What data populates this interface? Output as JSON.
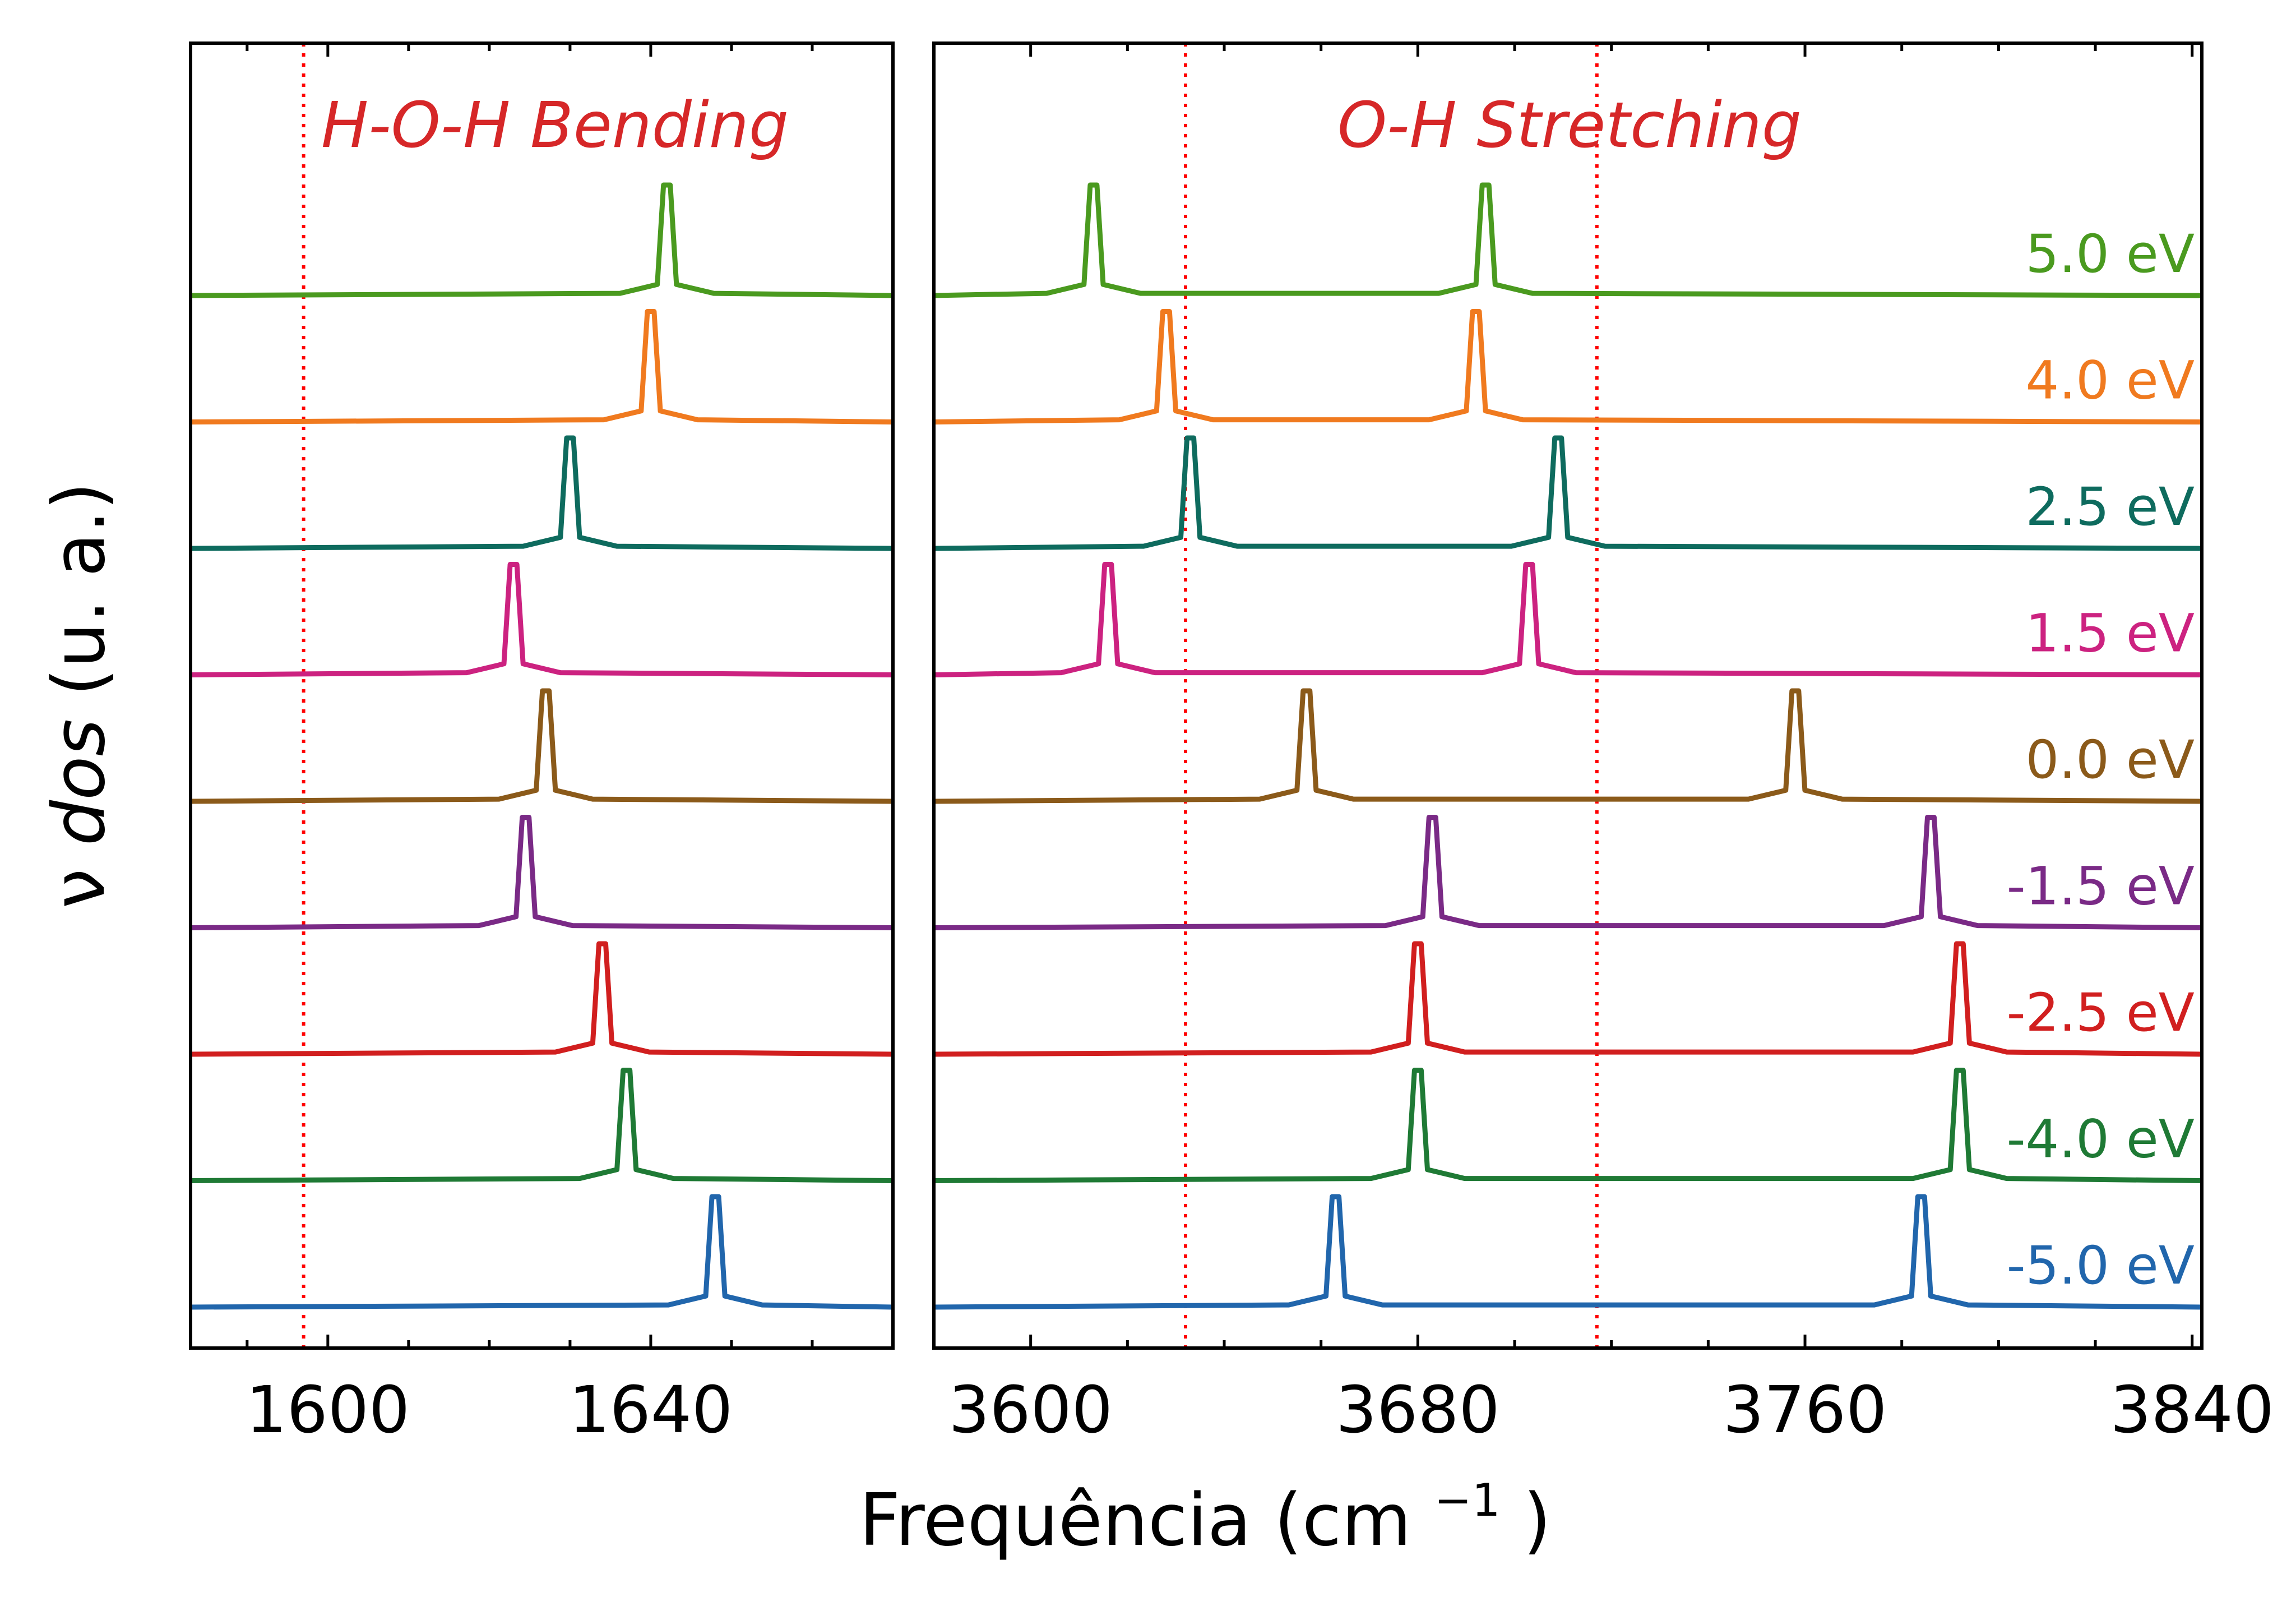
{
  "chart_data": [
    {
      "type": "line",
      "panel": "left",
      "title": "H-O-H Bending",
      "xlim": [
        1583,
        1670
      ],
      "xticks_major": [
        1600,
        1640
      ],
      "xticks_minor": [
        1590,
        1610,
        1620,
        1630,
        1650,
        1660
      ],
      "tick_labels": [
        "1600",
        "1640"
      ],
      "reference_line_x": 1597,
      "grid": false,
      "series": [
        {
          "name": "5.0 eV",
          "peaks": [
            1642
          ]
        },
        {
          "name": "4.0 eV",
          "peaks": [
            1640
          ]
        },
        {
          "name": "2.5 eV",
          "peaks": [
            1630
          ]
        },
        {
          "name": "1.5 eV",
          "peaks": [
            1623
          ]
        },
        {
          "name": "0.0 eV",
          "peaks": [
            1627
          ]
        },
        {
          "name": "-1.5 eV",
          "peaks": [
            1624.5
          ]
        },
        {
          "name": "-2.5 eV",
          "peaks": [
            1634
          ]
        },
        {
          "name": "-4.0 eV",
          "peaks": [
            1637
          ]
        },
        {
          "name": "-5.0 eV",
          "peaks": [
            1648
          ]
        }
      ]
    },
    {
      "type": "line",
      "panel": "right",
      "title": "O-H Stretching",
      "xlim": [
        3580,
        3842
      ],
      "xticks_major": [
        3600,
        3680,
        3760,
        3840
      ],
      "xticks_minor": [
        3620,
        3640,
        3660,
        3700,
        3720,
        3740,
        3780,
        3800,
        3820
      ],
      "tick_labels": [
        "3600",
        "3680",
        "3760",
        "3840"
      ],
      "reference_lines_x": [
        3632,
        3717
      ],
      "grid": false,
      "series": [
        {
          "name": "5.0 eV",
          "peaks": [
            3613,
            3694
          ]
        },
        {
          "name": "4.0 eV",
          "peaks": [
            3628,
            3692
          ]
        },
        {
          "name": "2.5 eV",
          "peaks": [
            3633,
            3709
          ]
        },
        {
          "name": "1.5 eV",
          "peaks": [
            3616,
            3703
          ]
        },
        {
          "name": "0.0 eV",
          "peaks": [
            3657,
            3758
          ]
        },
        {
          "name": "-1.5 eV",
          "peaks": [
            3683,
            3786
          ]
        },
        {
          "name": "-2.5 eV",
          "peaks": [
            3680,
            3792
          ]
        },
        {
          "name": "-4.0 eV",
          "peaks": [
            3680,
            3792
          ]
        },
        {
          "name": "-5.0 eV",
          "peaks": [
            3663,
            3784
          ]
        }
      ]
    }
  ],
  "labels": {
    "ylabel_symbol": "ν",
    "ylabel_dos": "dos",
    "ylabel_rest": " (u. a.)",
    "xlabel_main": "Frequência (cm",
    "xlabel_sup": "−1",
    "xlabel_close": ")"
  },
  "colors": {
    "reference_line": "#ff0000",
    "panel_title": "#d62728",
    "series": [
      "#4a9a1f",
      "#f07a1f",
      "#0e6b5e",
      "#cc2280",
      "#8b5a1a",
      "#7a2a86",
      "#d11f1f",
      "#1f7a35",
      "#2166ac"
    ]
  }
}
